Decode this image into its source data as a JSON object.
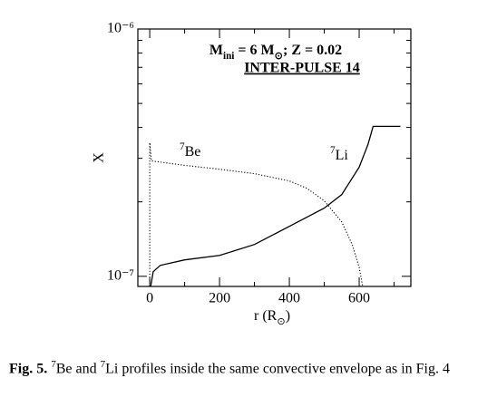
{
  "chart_data": {
    "type": "line",
    "title_parts": [
      {
        "text": "M"
      },
      {
        "text": "ini",
        "shift": "sub"
      },
      {
        "text": " = 6 M"
      },
      {
        "text": "⊙",
        "shift": "sub"
      },
      {
        "text": "; Z = 0.02"
      }
    ],
    "subtitle": "INTER-PULSE 14",
    "xlabel_parts": [
      {
        "text": "r (R"
      },
      {
        "text": "⊙",
        "shift": "sub"
      },
      {
        "text": ")"
      }
    ],
    "ylabel": "X",
    "xlim": [
      -34,
      748
    ],
    "xticks": [
      0,
      200,
      400,
      600
    ],
    "xminor_ticks": [
      100,
      300,
      500,
      700
    ],
    "ylim": [
      9.1e-08,
      1e-06
    ],
    "log_y": true,
    "yticks": [
      {
        "value": 1e-07,
        "label": "10⁻⁷"
      },
      {
        "value": 1e-06,
        "label": "10⁻⁶"
      }
    ],
    "yminor_ticks": [
      2e-07,
      3e-07,
      4e-07,
      5e-07,
      6e-07,
      7e-07,
      8e-07,
      9e-07
    ],
    "series": [
      {
        "dash": "solid",
        "color": "#000000",
        "x": [
          3,
          10,
          30,
          100,
          200,
          300,
          400,
          500,
          550,
          600,
          625,
          640,
          718
        ],
        "y": [
          9.11e-08,
          1.043e-07,
          1.107e-07,
          1.165e-07,
          1.215e-07,
          1.345e-07,
          1.593e-07,
          1.887e-07,
          2.14e-07,
          2.76e-07,
          3.41e-07,
          4.04e-07,
          4.04e-07
        ]
      },
      {
        "dash": "dotted",
        "color": "#000000",
        "x": [
          0,
          0,
          5,
          100,
          200,
          300,
          400,
          450,
          500,
          550,
          580,
          600,
          610
        ],
        "y": [
          9.11e-08,
          3.47e-07,
          2.93e-07,
          2.81e-07,
          2.71e-07,
          2.6e-07,
          2.43e-07,
          2.27e-07,
          2.02e-07,
          1.66e-07,
          1.345e-07,
          1.088e-07,
          9.11e-08
        ]
      }
    ],
    "annotations": [
      {
        "parts": [
          {
            "text": "7",
            "shift": "sup"
          },
          {
            "text": "Li"
          }
        ]
      },
      {
        "parts": [
          {
            "text": "7",
            "shift": "sup"
          },
          {
            "text": "Be"
          }
        ]
      }
    ],
    "caption": {
      "label": "Fig. 5.",
      "parts": [
        {
          "text": " "
        },
        {
          "text": "7",
          "shift": "sup"
        },
        {
          "text": "Be and "
        },
        {
          "text": "7",
          "shift": "sup"
        },
        {
          "text": "Li profiles inside the same convective envelope as in Fig. 4"
        }
      ]
    }
  }
}
